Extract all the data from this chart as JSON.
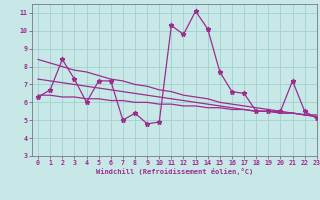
{
  "x": [
    0,
    1,
    2,
    3,
    4,
    5,
    6,
    7,
    8,
    9,
    10,
    11,
    12,
    13,
    14,
    15,
    16,
    17,
    18,
    19,
    20,
    21,
    22,
    23
  ],
  "y_main": [
    6.3,
    6.7,
    8.4,
    7.3,
    6.0,
    7.2,
    7.2,
    5.0,
    5.4,
    4.8,
    4.9,
    10.3,
    9.8,
    11.1,
    10.1,
    7.7,
    6.6,
    6.5,
    5.5,
    5.5,
    5.5,
    7.2,
    5.5,
    5.1
  ],
  "y_upper": [
    8.4,
    8.2,
    8.0,
    7.8,
    7.7,
    7.5,
    7.3,
    7.2,
    7.0,
    6.9,
    6.7,
    6.6,
    6.4,
    6.3,
    6.2,
    6.0,
    5.9,
    5.8,
    5.7,
    5.6,
    5.5,
    5.4,
    5.3,
    5.2
  ],
  "y_mid": [
    7.3,
    7.2,
    7.1,
    7.0,
    6.9,
    6.8,
    6.7,
    6.6,
    6.5,
    6.4,
    6.3,
    6.2,
    6.1,
    6.0,
    5.9,
    5.8,
    5.7,
    5.6,
    5.5,
    5.5,
    5.4,
    5.4,
    5.3,
    5.2
  ],
  "y_lower": [
    6.4,
    6.4,
    6.3,
    6.3,
    6.2,
    6.2,
    6.1,
    6.1,
    6.0,
    6.0,
    5.9,
    5.9,
    5.8,
    5.8,
    5.7,
    5.7,
    5.6,
    5.6,
    5.5,
    5.5,
    5.4,
    5.4,
    5.3,
    5.3
  ],
  "color": "#9B2D8E",
  "bg_color": "#C8E8E8",
  "grid_color": "#A0D0D0",
  "xlabel": "Windchill (Refroidissement éolien,°C)",
  "ylim": [
    3,
    11.5
  ],
  "xlim": [
    -0.5,
    23
  ],
  "yticks": [
    3,
    4,
    5,
    6,
    7,
    8,
    9,
    10,
    11
  ],
  "xticks": [
    0,
    1,
    2,
    3,
    4,
    5,
    6,
    7,
    8,
    9,
    10,
    11,
    12,
    13,
    14,
    15,
    16,
    17,
    18,
    19,
    20,
    21,
    22,
    23
  ]
}
